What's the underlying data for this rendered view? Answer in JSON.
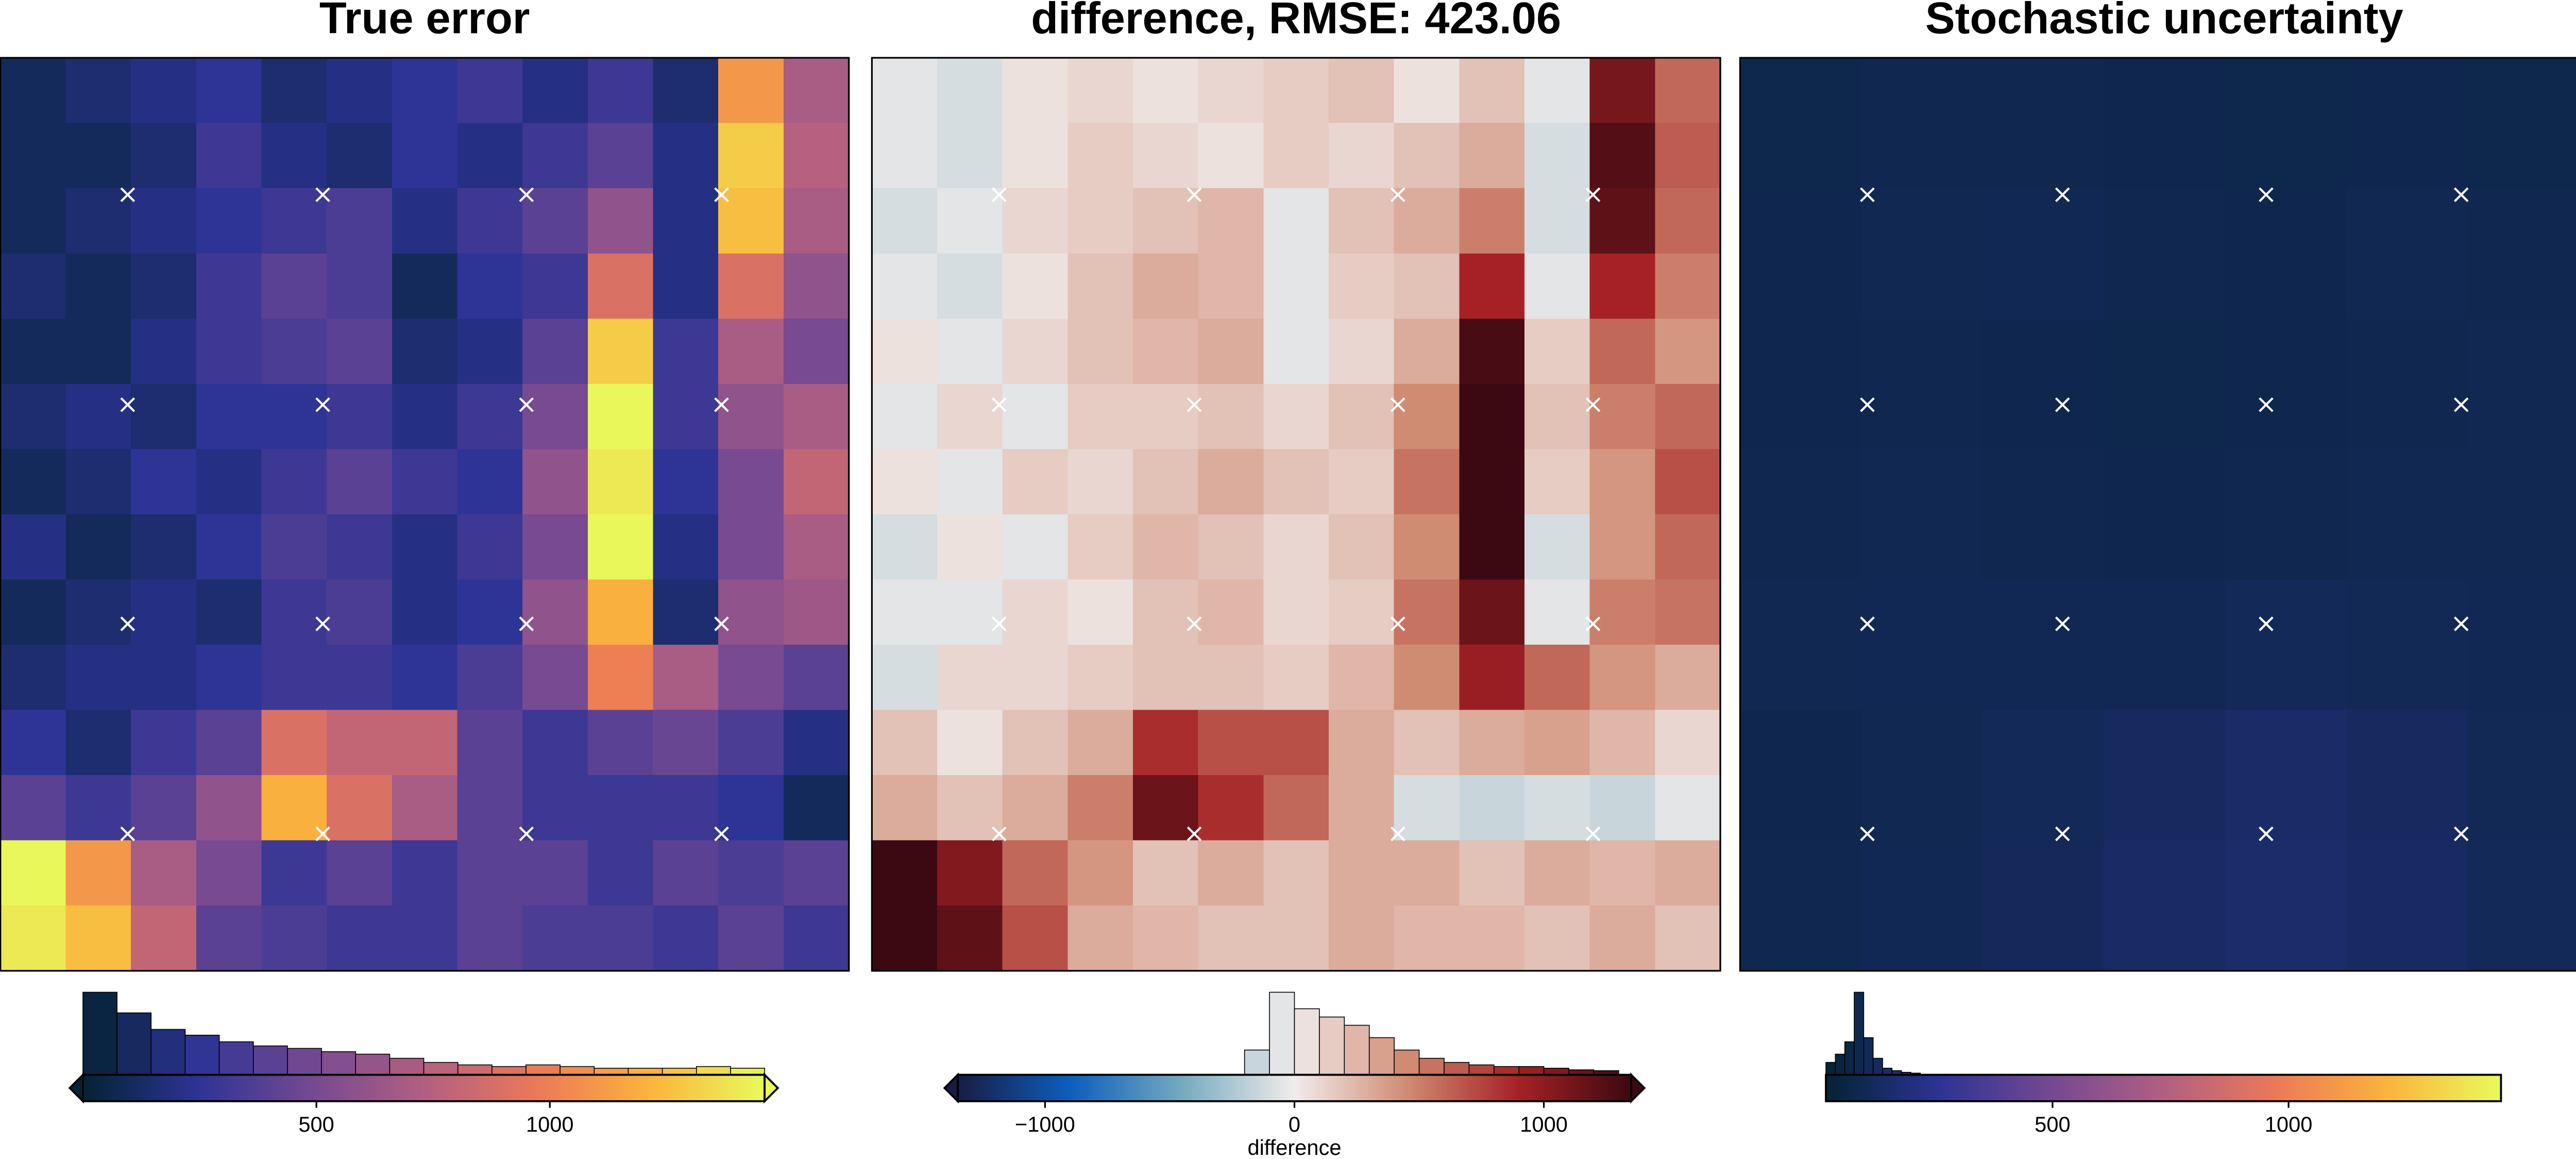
{
  "chart_data": [
    {
      "type": "heatmap",
      "title": "True error",
      "xlim": [
        0,
        100
      ],
      "ylim": [
        0,
        100
      ],
      "points_x": [
        15,
        38,
        62,
        85
      ],
      "points_y": [
        15,
        38,
        62,
        85
      ],
      "zlim": [
        0,
        1460
      ],
      "cmap": [
        "#042333",
        "#2c3395",
        "#744992",
        "#b15f82",
        "#eb7958",
        "#fbb43d",
        "#e8fa5b"
      ],
      "values": [
        [
          100,
          150,
          200,
          250,
          150,
          200,
          250,
          300,
          200,
          300,
          150,
          1100,
          700
        ],
        [
          100,
          100,
          150,
          300,
          200,
          150,
          250,
          200,
          300,
          400,
          200,
          1300,
          750
        ],
        [
          100,
          150,
          200,
          250,
          300,
          350,
          200,
          300,
          400,
          600,
          200,
          1250,
          700
        ],
        [
          150,
          100,
          150,
          300,
          400,
          350,
          100,
          250,
          300,
          900,
          200,
          900,
          600
        ],
        [
          100,
          100,
          200,
          300,
          350,
          400,
          150,
          200,
          400,
          1300,
          300,
          700,
          500
        ],
        [
          150,
          200,
          150,
          250,
          250,
          300,
          200,
          300,
          500,
          1450,
          300,
          600,
          700
        ],
        [
          100,
          150,
          250,
          200,
          300,
          400,
          300,
          250,
          600,
          1400,
          250,
          500,
          800
        ],
        [
          200,
          100,
          150,
          250,
          350,
          300,
          200,
          300,
          500,
          1450,
          200,
          500,
          700
        ],
        [
          100,
          150,
          200,
          150,
          300,
          350,
          200,
          250,
          600,
          1200,
          150,
          600,
          650
        ],
        [
          150,
          200,
          200,
          250,
          300,
          300,
          250,
          350,
          500,
          1000,
          700,
          500,
          400
        ],
        [
          250,
          150,
          300,
          400,
          900,
          800,
          800,
          400,
          300,
          400,
          450,
          350,
          200
        ],
        [
          400,
          300,
          400,
          600,
          1200,
          900,
          700,
          400,
          300,
          300,
          300,
          250,
          100
        ],
        [
          1450,
          1100,
          700,
          500,
          300,
          400,
          300,
          400,
          400,
          300,
          400,
          350,
          400
        ],
        [
          1400,
          1250,
          800,
          400,
          350,
          300,
          300,
          400,
          350,
          350,
          300,
          400,
          300
        ]
      ],
      "colorbar": {
        "extend": "both",
        "ticks": [
          500,
          1000
        ],
        "hist": {
          "bins": [
            0,
            73,
            146,
            219,
            292,
            365,
            438,
            511,
            584,
            657,
            730,
            803,
            876,
            949,
            1022,
            1095,
            1168,
            1241,
            1314,
            1387,
            1460
          ],
          "counts": [
            100,
            75,
            55,
            48,
            40,
            35,
            32,
            28,
            25,
            20,
            15,
            12,
            10,
            12,
            10,
            8,
            8,
            8,
            10,
            8
          ]
        }
      }
    },
    {
      "type": "heatmap",
      "title": "difference, RMSE: 423.06",
      "xlim": [
        0,
        100
      ],
      "ylim": [
        0,
        100
      ],
      "points_x": [
        15,
        38,
        62,
        85
      ],
      "points_y": [
        15,
        38,
        62,
        85
      ],
      "zlim": [
        -1350,
        1350
      ],
      "cmap": [
        "#181c43",
        "#0c5ebe",
        "#75aabe",
        "#f1eceb",
        "#d08b73",
        "#a52125",
        "#3c0912"
      ],
      "values": [
        [
          -50,
          -100,
          50,
          100,
          50,
          100,
          150,
          200,
          50,
          200,
          -50,
          1100,
          600
        ],
        [
          -50,
          -100,
          50,
          150,
          100,
          50,
          150,
          100,
          200,
          300,
          -100,
          1250,
          650
        ],
        [
          -100,
          -50,
          100,
          150,
          200,
          250,
          -50,
          200,
          300,
          500,
          -100,
          1200,
          600
        ],
        [
          -50,
          -100,
          50,
          200,
          300,
          250,
          -50,
          150,
          200,
          900,
          -50,
          900,
          500
        ],
        [
          50,
          -50,
          100,
          200,
          250,
          300,
          -50,
          100,
          300,
          1300,
          150,
          600,
          400
        ],
        [
          -50,
          100,
          -50,
          150,
          150,
          200,
          100,
          200,
          450,
          1400,
          200,
          500,
          600
        ],
        [
          50,
          -50,
          150,
          100,
          200,
          300,
          200,
          150,
          550,
          1350,
          150,
          400,
          700
        ],
        [
          -100,
          50,
          -50,
          150,
          250,
          200,
          100,
          200,
          450,
          1400,
          -100,
          400,
          600
        ],
        [
          -50,
          -50,
          100,
          50,
          200,
          250,
          100,
          150,
          550,
          1150,
          -50,
          500,
          550
        ],
        [
          -100,
          100,
          100,
          150,
          200,
          200,
          150,
          250,
          450,
          950,
          600,
          400,
          300
        ],
        [
          200,
          50,
          200,
          300,
          850,
          700,
          700,
          300,
          200,
          300,
          350,
          250,
          100
        ],
        [
          300,
          200,
          300,
          500,
          1150,
          850,
          600,
          300,
          -100,
          -150,
          -100,
          -150,
          -50
        ],
        [
          1400,
          1050,
          600,
          400,
          200,
          300,
          200,
          300,
          300,
          200,
          300,
          250,
          300
        ],
        [
          1350,
          1200,
          700,
          300,
          250,
          200,
          200,
          300,
          250,
          250,
          200,
          300,
          200
        ]
      ],
      "colorbar": {
        "extend": "both",
        "label": "difference",
        "ticks": [
          {
            "value": -1000,
            "label": "−1000"
          },
          0,
          1000
        ],
        "hist": {
          "bins": [
            -200,
            -100,
            0,
            100,
            200,
            300,
            400,
            500,
            600,
            700,
            800,
            900,
            1000,
            1100,
            1200,
            1300
          ],
          "counts": [
            30,
            100,
            80,
            70,
            60,
            45,
            30,
            20,
            15,
            12,
            10,
            10,
            8,
            6,
            5
          ]
        }
      }
    },
    {
      "type": "heatmap",
      "title": "Stochastic uncertainty",
      "xlim": [
        0,
        100
      ],
      "ylim": [
        0,
        100
      ],
      "points_x": [
        15,
        38,
        62,
        85
      ],
      "points_y": [
        15,
        38,
        62,
        85
      ],
      "zlim": [
        20,
        1450
      ],
      "cmap": [
        "#042333",
        "#2c3395",
        "#744992",
        "#b15f82",
        "#eb7958",
        "#fbb43d",
        "#e8fa5b"
      ],
      "values": [
        [
          80,
          90,
          90,
          85,
          80,
          85,
          80
        ],
        [
          85,
          95,
          100,
          90,
          85,
          95,
          90
        ],
        [
          85,
          90,
          85,
          80,
          85,
          90,
          95
        ],
        [
          90,
          95,
          90,
          85,
          90,
          95,
          95
        ],
        [
          95,
          100,
          100,
          100,
          110,
          105,
          100
        ],
        [
          85,
          95,
          110,
          130,
          150,
          130,
          105
        ],
        [
          90,
          100,
          115,
          140,
          155,
          135,
          110
        ]
      ],
      "colorbar": {
        "extend": "neither",
        "ticks": [
          500,
          1000
        ],
        "hist": {
          "bins": [
            20,
            40,
            60,
            80,
            100,
            120,
            140,
            160,
            180,
            200,
            220
          ],
          "counts": [
            15,
            25,
            40,
            100,
            45,
            20,
            8,
            5,
            3,
            2
          ]
        }
      }
    }
  ]
}
